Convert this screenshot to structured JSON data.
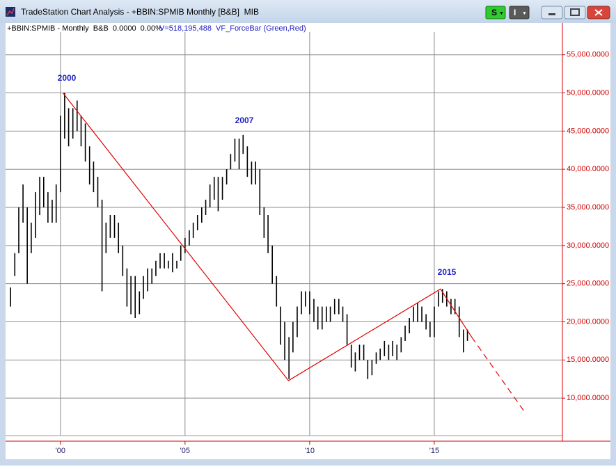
{
  "window": {
    "title": "TradeStation Chart Analysis - +BBIN:SPMIB Monthly [B&B]  MIB",
    "buttons": [
      "S",
      "I"
    ]
  },
  "chart_data": {
    "type": "range-bar",
    "header": "+BBIN:SPMIB - Monthly  B&B  0.0000  0.00%",
    "subheader": "V=518,195,488  VF_ForceBar (Green,Red)",
    "color": "#000000",
    "x": [
      1998.0,
      1998.17,
      1998.33,
      1998.5,
      1998.67,
      1998.83,
      1999.0,
      1999.17,
      1999.33,
      1999.5,
      1999.67,
      1999.83,
      2000.0,
      2000.17,
      2000.33,
      2000.5,
      2000.67,
      2000.83,
      2001.0,
      2001.17,
      2001.33,
      2001.5,
      2001.67,
      2001.83,
      2002.0,
      2002.17,
      2002.33,
      2002.5,
      2002.67,
      2002.83,
      2003.0,
      2003.17,
      2003.33,
      2003.5,
      2003.67,
      2003.83,
      2004.0,
      2004.17,
      2004.33,
      2004.5,
      2004.67,
      2004.83,
      2005.0,
      2005.17,
      2005.33,
      2005.5,
      2005.67,
      2005.83,
      2006.0,
      2006.17,
      2006.33,
      2006.5,
      2006.67,
      2006.83,
      2007.0,
      2007.17,
      2007.33,
      2007.5,
      2007.67,
      2007.83,
      2008.0,
      2008.17,
      2008.33,
      2008.5,
      2008.67,
      2008.83,
      2009.0,
      2009.17,
      2009.33,
      2009.5,
      2009.67,
      2009.83,
      2010.0,
      2010.17,
      2010.33,
      2010.5,
      2010.67,
      2010.83,
      2011.0,
      2011.17,
      2011.33,
      2011.5,
      2011.67,
      2011.83,
      2012.0,
      2012.17,
      2012.33,
      2012.5,
      2012.67,
      2012.83,
      2013.0,
      2013.17,
      2013.33,
      2013.5,
      2013.67,
      2013.83,
      2014.0,
      2014.17,
      2014.33,
      2014.5,
      2014.67,
      2014.83,
      2015.0,
      2015.17,
      2015.33,
      2015.5,
      2015.67,
      2015.83,
      2016.0,
      2016.17,
      2016.33
    ],
    "highs": [
      24500,
      29000,
      35000,
      38000,
      35000,
      33000,
      37000,
      39000,
      39000,
      37000,
      36000,
      38000,
      47000,
      50000,
      48000,
      48000,
      49000,
      47000,
      46000,
      43000,
      41000,
      39000,
      36000,
      33000,
      34000,
      34000,
      33000,
      30000,
      27000,
      26000,
      26000,
      24000,
      26000,
      27000,
      27000,
      28000,
      29000,
      29000,
      28000,
      29000,
      28000,
      30000,
      31000,
      32000,
      33000,
      34000,
      35000,
      36000,
      38000,
      39000,
      39000,
      39000,
      40000,
      42000,
      44000,
      44000,
      44500,
      43000,
      41000,
      41000,
      40000,
      35000,
      34000,
      30000,
      26000,
      22000,
      20000,
      18000,
      20000,
      22000,
      24000,
      24000,
      24000,
      23000,
      22000,
      22000,
      22000,
      22000,
      23000,
      23000,
      22000,
      21000,
      17000,
      16000,
      17000,
      17000,
      15000,
      15000,
      16000,
      16500,
      17500,
      17000,
      17500,
      17000,
      18000,
      19500,
      20500,
      22000,
      22500,
      22000,
      21000,
      20000,
      22000,
      24000,
      24300,
      24000,
      23000,
      23000,
      22000,
      19000,
      19000
    ],
    "lows": [
      22000,
      26000,
      29000,
      33000,
      25000,
      29000,
      31000,
      34000,
      35000,
      33000,
      33000,
      33000,
      37000,
      44000,
      43000,
      44000,
      45000,
      43000,
      41000,
      38000,
      37000,
      35000,
      24000,
      29000,
      31000,
      31000,
      29000,
      26000,
      22000,
      21000,
      20500,
      21000,
      23000,
      24000,
      25000,
      26000,
      27000,
      27000,
      27000,
      26500,
      27000,
      28000,
      29000,
      30000,
      31000,
      32000,
      33000,
      34000,
      35000,
      36000,
      34500,
      36000,
      38000,
      40000,
      41000,
      40000,
      42000,
      39000,
      38000,
      38000,
      34000,
      31000,
      29000,
      25000,
      22000,
      17000,
      15000,
      12500,
      16000,
      18000,
      21000,
      22000,
      21000,
      20000,
      19000,
      19000,
      20000,
      20000,
      21000,
      21000,
      20000,
      17000,
      14000,
      13500,
      15000,
      15000,
      12500,
      13000,
      14500,
      15000,
      15500,
      15000,
      15500,
      15000,
      16000,
      17500,
      18500,
      20000,
      20000,
      20000,
      19000,
      18000,
      18000,
      22000,
      22500,
      22000,
      21000,
      21000,
      18000,
      16000,
      17500
    ],
    "lines": [
      {
        "color": "#e00000",
        "style": "solid",
        "x": [
          2000.1,
          2009.15,
          2015.25,
          2016.5
        ],
        "values": [
          50000,
          12300,
          24300,
          18000
        ]
      },
      {
        "color": "#e00000",
        "style": "dashed",
        "x": [
          2016.5,
          2018.6
        ],
        "values": [
          18000,
          8300
        ]
      }
    ],
    "annotations": [
      "2000",
      "2007",
      "2015"
    ],
    "xlim": [
      1997.8,
      2020.14
    ],
    "xticks": [
      {
        "value": 2000,
        "label": "'00"
      },
      {
        "value": 2005,
        "label": "'05"
      },
      {
        "value": 2010,
        "label": "'10"
      },
      {
        "value": 2015,
        "label": "'15"
      }
    ],
    "ylim": [
      5000,
      57800
    ],
    "yticks": [
      {
        "value": 10000,
        "label": "10,000.0000"
      },
      {
        "value": 15000,
        "label": "15,000.0000"
      },
      {
        "value": 20000,
        "label": "20,000.0000"
      },
      {
        "value": 25000,
        "label": "25,000.0000"
      },
      {
        "value": 30000,
        "label": "30,000.0000"
      },
      {
        "value": 35000,
        "label": "35,000.0000"
      },
      {
        "value": 40000,
        "label": "40,000.0000"
      },
      {
        "value": 45000,
        "label": "45,000.0000"
      },
      {
        "value": 50000,
        "label": "50,000.0000"
      },
      {
        "value": 55000,
        "label": "55,000.0000"
      }
    ],
    "grid": true
  }
}
